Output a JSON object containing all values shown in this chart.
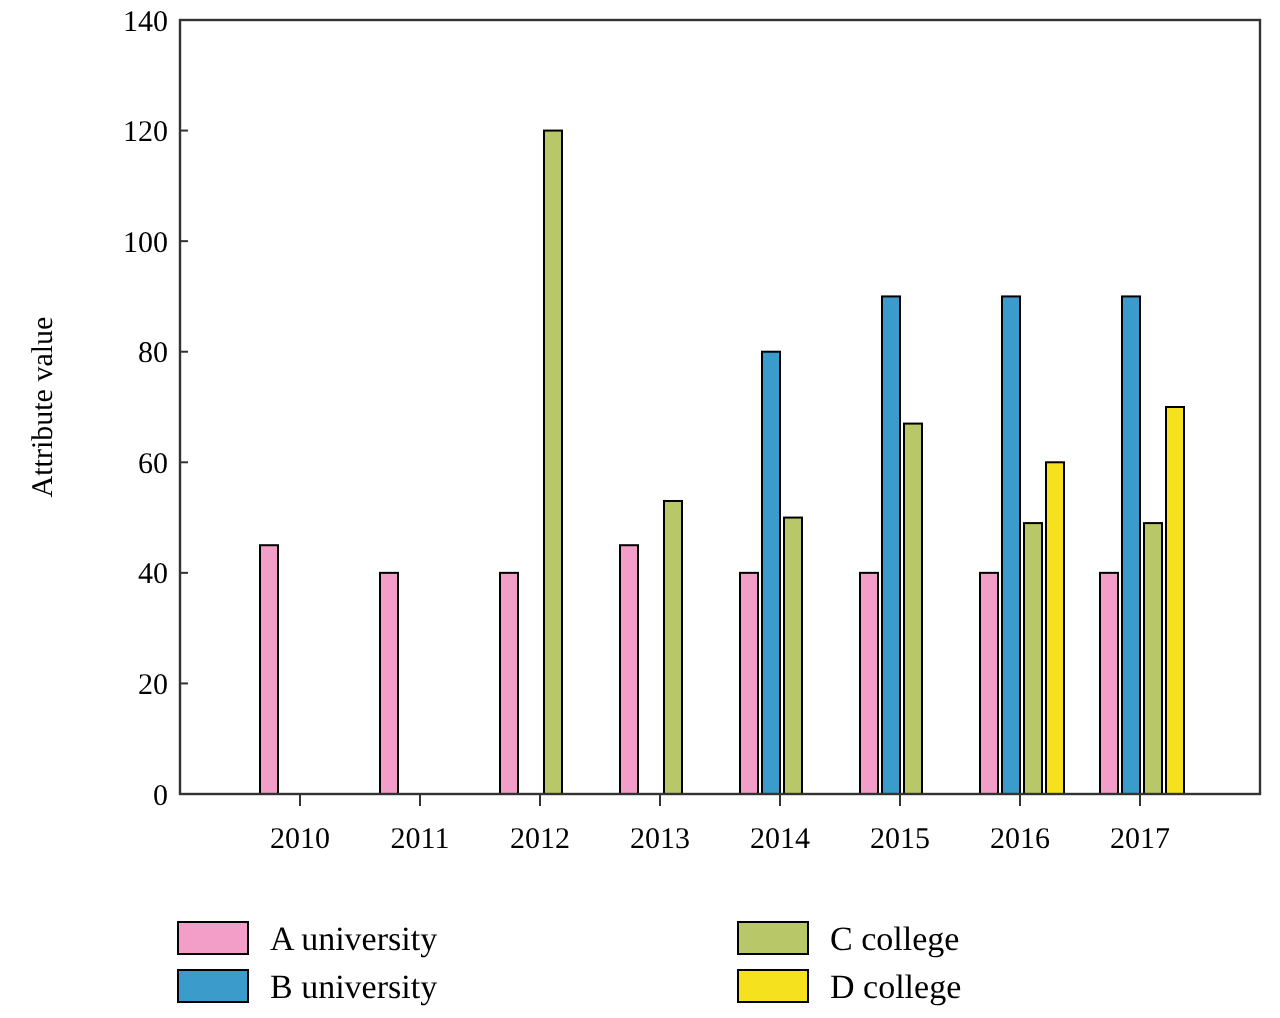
{
  "chart_data": {
    "type": "bar",
    "ylabel": "Attribute value",
    "categories": [
      "2010",
      "2011",
      "2012",
      "2013",
      "2014",
      "2015",
      "2016",
      "2017"
    ],
    "series": [
      {
        "name": "A university",
        "color": "#f29ec8",
        "values": [
          45,
          40,
          40,
          45,
          40,
          40,
          40,
          40
        ]
      },
      {
        "name": "B university",
        "color": "#3b9ccc",
        "values": [
          null,
          null,
          null,
          null,
          80,
          90,
          90,
          90
        ]
      },
      {
        "name": "C college",
        "color": "#b8c868",
        "values": [
          null,
          null,
          120,
          53,
          50,
          67,
          49,
          49
        ]
      },
      {
        "name": "D college",
        "color": "#f5e11e",
        "values": [
          null,
          null,
          null,
          null,
          null,
          null,
          60,
          70
        ]
      }
    ],
    "ylim": [
      0,
      140
    ],
    "yticks": [
      0,
      20,
      40,
      60,
      80,
      100,
      120,
      140
    ],
    "grid": false,
    "legend": "bottom"
  }
}
